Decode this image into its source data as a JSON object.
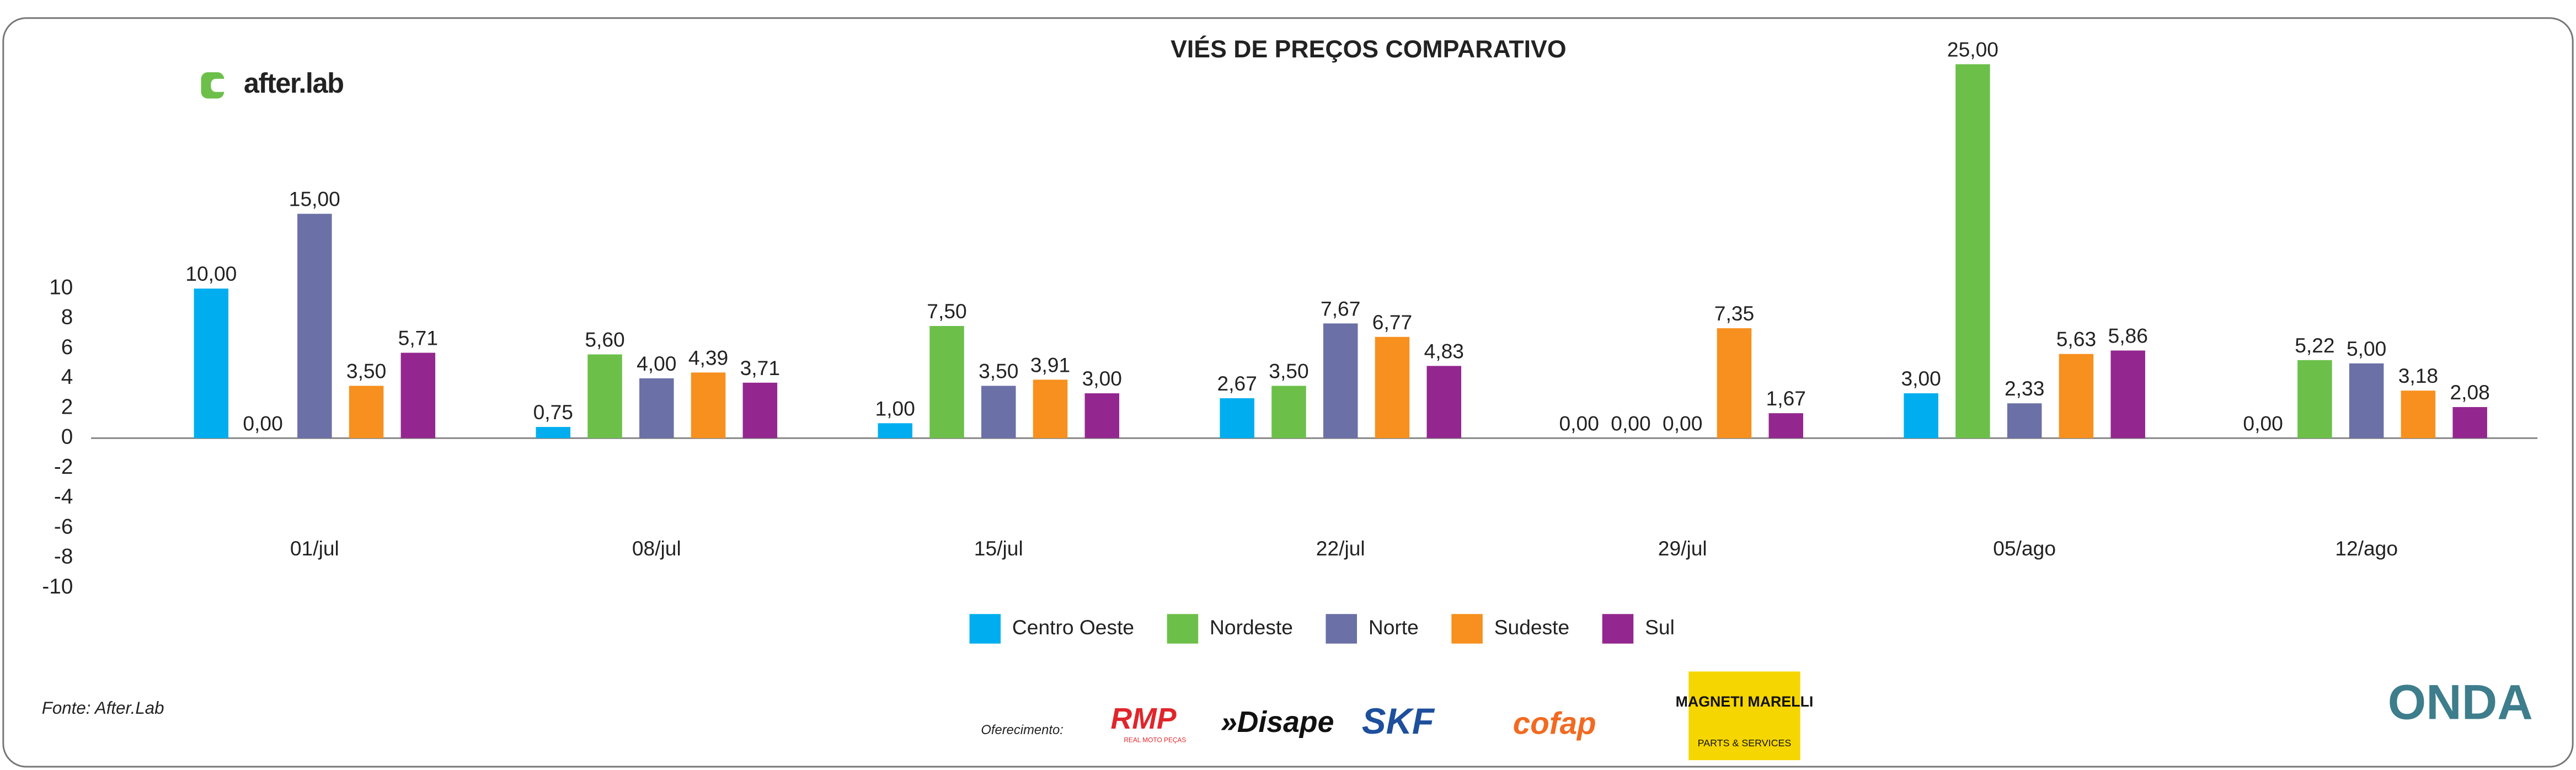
{
  "chart_data": {
    "type": "bar",
    "title": "VIÉS DE PREÇOS COMPARATIVO",
    "categories": [
      "01/jul",
      "08/jul",
      "15/jul",
      "22/jul",
      "29/jul",
      "05/ago",
      "12/ago"
    ],
    "series": [
      {
        "name": "Centro Oeste",
        "color": "#00aeef",
        "values": [
          10,
          0.75,
          1,
          2.67,
          0,
          3,
          0
        ],
        "value_labels": [
          "10,00",
          "0,75",
          "1,00",
          "2,67",
          "0,00",
          "3,00",
          "0,00"
        ]
      },
      {
        "name": "Nordeste",
        "color": "#6cc04a",
        "values": [
          0,
          5.6,
          7.5,
          3.5,
          0,
          25,
          5.22
        ],
        "value_labels": [
          "0,00",
          "5,60",
          "7,50",
          "3,50",
          "0,00",
          "25,00",
          "5,22"
        ]
      },
      {
        "name": "Norte",
        "color": "#6b70a6",
        "values": [
          15,
          4,
          3.5,
          7.67,
          0,
          2.33,
          5
        ],
        "value_labels": [
          "15,00",
          "4,00",
          "3,50",
          "7,67",
          "0,00",
          "2,33",
          "5,00"
        ]
      },
      {
        "name": "Sudeste",
        "color": "#f7901e",
        "values": [
          3.5,
          4.39,
          3.91,
          6.77,
          7.35,
          5.63,
          3.18
        ],
        "value_labels": [
          "3,50",
          "4,39",
          "3,91",
          "6,77",
          "7,35",
          "5,63",
          "3,18"
        ]
      },
      {
        "name": "Sul",
        "color": "#93278f",
        "values": [
          5.71,
          3.71,
          3,
          4.83,
          1.67,
          5.86,
          2.08
        ],
        "value_labels": [
          "5,71",
          "3,71",
          "3,00",
          "4,83",
          "1,67",
          "5,86",
          "2,08"
        ]
      }
    ],
    "ylim": [
      -10,
      26
    ],
    "yticks": [
      -10,
      -8,
      -6,
      -4,
      -2,
      0,
      2,
      4,
      6,
      8,
      10
    ],
    "grid": false,
    "legend": "bottom"
  },
  "branding": {
    "logo": "after.lab",
    "source": "Fonte: After.Lab",
    "sponsor_label": "Oferecimento:",
    "sponsors": [
      "RMP",
      "REAL MOTO PEÇAS",
      "»Disape",
      "SKF",
      "cofap",
      "MAGNETI MARELLI",
      "PARTS & SERVICES"
    ],
    "brand": "ONDA"
  }
}
